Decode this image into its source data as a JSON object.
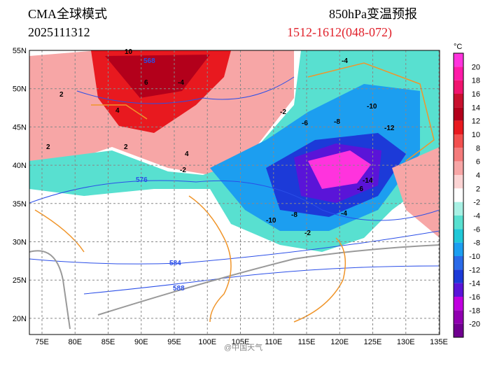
{
  "header": {
    "model": "CMA全球模式",
    "init_time": "2025111312",
    "title": "850hPa变温预报",
    "period": "1512-1612(048-072)"
  },
  "axes": {
    "lat_labels": [
      "55N",
      "50N",
      "45N",
      "40N",
      "35N",
      "30N",
      "25N",
      "20N"
    ],
    "lon_labels": [
      "75E",
      "80E",
      "85E",
      "90E",
      "95E",
      "100E",
      "105E",
      "110E",
      "115E",
      "120E",
      "125E",
      "130E",
      "135E"
    ]
  },
  "colorbar": {
    "unit": "°C",
    "labels": [
      20,
      18,
      16,
      14,
      12,
      10,
      8,
      6,
      4,
      2,
      -2,
      -4,
      -6,
      -8,
      -10,
      -12,
      -14,
      -16,
      -18,
      -20
    ],
    "colors": [
      "#ff33dd",
      "#ff1aa8",
      "#f0146e",
      "#c8102e",
      "#b3001b",
      "#e8191f",
      "#f2504f",
      "#f47b7b",
      "#f7a6a6",
      "#fbd3d3",
      "#ffffff",
      "#a8f0e4",
      "#58e0d0",
      "#20c8d8",
      "#1c9ef0",
      "#2a6ae8",
      "#1c3ad8",
      "#5a14d8",
      "#c000e0",
      "#9000b0",
      "#700090"
    ]
  },
  "contour_labels": [
    "10",
    "568",
    "6",
    "-4",
    "2",
    "4",
    "2",
    "2",
    "4",
    "-2",
    "576",
    "-4",
    "-2",
    "-6",
    "-8",
    "-10",
    "-12",
    "-14",
    "-6",
    "-8",
    "-10",
    "-4",
    "-2",
    "584",
    "588"
  ],
  "watermark": "@中国天气"
}
